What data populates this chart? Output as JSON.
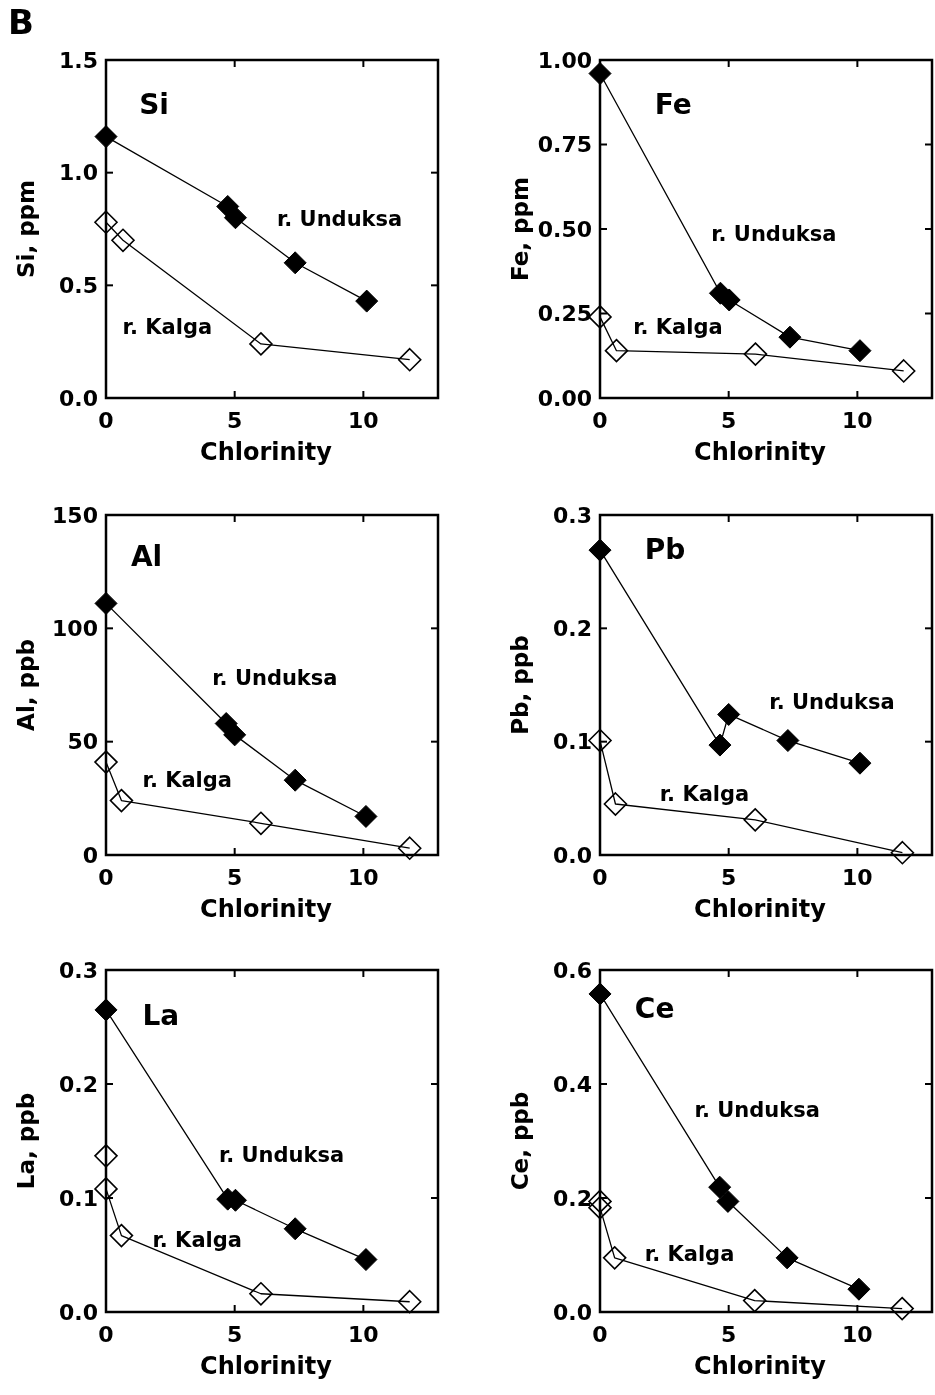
{
  "chart_data": [
    {
      "type": "line",
      "title": "Si",
      "xlabel": "Chlorinity",
      "ylabel": "Si, ppm",
      "annotations": [
        "B"
      ],
      "xlim": [
        0,
        12.9
      ],
      "xticks": [
        0,
        5,
        10
      ],
      "ylim": [
        0,
        1.5
      ],
      "yticks": [
        {
          "value": 0,
          "label": "0.0"
        },
        {
          "value": 0.5,
          "label": "0.5"
        },
        {
          "value": 1,
          "label": "1.0"
        },
        1.5
      ],
      "marker": "diamond",
      "line_style": "solid",
      "series": [
        {
          "name": "r. Unduksa",
          "color": "#000000",
          "x": [
            0,
            4.73,
            5.03,
            7.35,
            10.13
          ],
          "values": [
            1.16,
            0.85,
            0.8,
            0.6,
            0.43
          ]
        },
        {
          "name": "r. Kalga",
          "color": "#000000",
          "x": [
            0,
            0.66,
            6.02,
            11.8
          ],
          "values": [
            0.78,
            0.7,
            0.24,
            0.17
          ]
        }
      ]
    },
    {
      "type": "line",
      "title": "Fe",
      "xlabel": "Chlorinity",
      "ylabel": "Fe, ppm",
      "xlim": [
        0,
        12.9
      ],
      "xticks": [
        0,
        5,
        10
      ],
      "ylim": [
        0,
        1
      ],
      "yticks": [
        {
          "value": 0,
          "label": "0.00"
        },
        0.25,
        {
          "value": 0.5,
          "label": "0.50"
        },
        0.75,
        {
          "value": 1,
          "label": "1.00"
        }
      ],
      "marker": "diamond",
      "line_style": "solid",
      "series": [
        {
          "name": "r. Unduksa",
          "color": "#000000",
          "x": [
            0,
            4.68,
            5.02,
            7.38,
            10.1
          ],
          "values": [
            0.96,
            0.31,
            0.29,
            0.18,
            0.14
          ]
        },
        {
          "name": "r. Kalga",
          "color": "#000000",
          "x": [
            0,
            0.64,
            6.04,
            11.8
          ],
          "values": [
            0.24,
            0.14,
            0.13,
            0.08
          ]
        }
      ]
    },
    {
      "type": "line",
      "title": "Al",
      "xlabel": "Chlorinity",
      "ylabel": "Al, ppb",
      "xlim": [
        0,
        12.9
      ],
      "xticks": [
        0,
        5,
        10
      ],
      "ylim": [
        0,
        150
      ],
      "yticks": [
        0,
        50,
        100,
        150
      ],
      "marker": "diamond",
      "line_style": "solid",
      "series": [
        {
          "name": "r. Unduksa",
          "color": "#000000",
          "x": [
            0,
            4.67,
            5.0,
            7.35,
            10.1
          ],
          "values": [
            111,
            58,
            53,
            33,
            17
          ]
        },
        {
          "name": "r. Kalga",
          "color": "#000000",
          "x": [
            0,
            0.6,
            6.02,
            11.8
          ],
          "values": [
            41,
            24,
            14,
            3
          ]
        }
      ]
    },
    {
      "type": "line",
      "title": "Pb",
      "xlabel": "Chlorinity",
      "ylabel": "Pb, ppb",
      "xlim": [
        0,
        12.9
      ],
      "xticks": [
        0,
        5,
        10
      ],
      "ylim": [
        0,
        0.3
      ],
      "yticks": [
        {
          "value": 0,
          "label": "0.0"
        },
        0.1,
        0.2,
        0.3
      ],
      "marker": "diamond",
      "line_style": "solid",
      "series": [
        {
          "name": "r. Unduksa",
          "color": "#000000",
          "x": [
            0,
            4.66,
            5.0,
            7.3,
            10.1
          ],
          "values": [
            0.269,
            0.097,
            0.124,
            0.101,
            0.081
          ]
        },
        {
          "name": "r. Kalga",
          "color": "#000000",
          "x": [
            0,
            0.6,
            6.03,
            11.75
          ],
          "values": [
            0.101,
            0.045,
            0.031,
            0.002
          ]
        }
      ]
    },
    {
      "type": "line",
      "title": "La",
      "xlabel": "Chlorinity",
      "ylabel": "La, ppb",
      "xlim": [
        0,
        12.9
      ],
      "xticks": [
        0,
        5,
        10
      ],
      "ylim": [
        0,
        0.3
      ],
      "yticks": [
        {
          "value": 0,
          "label": "0.0"
        },
        0.1,
        0.2,
        0.3
      ],
      "marker": "diamond",
      "line_style": "solid",
      "series": [
        {
          "name": "r. Unduksa",
          "color": "#000000",
          "x": [
            0,
            4.73,
            5.03,
            7.35,
            10.1
          ],
          "values": [
            0.265,
            0.099,
            0.098,
            0.073,
            0.046
          ]
        },
        {
          "name": "r. Kalga",
          "color": "#000000",
          "x": [
            0,
            0,
            0.6,
            6.02,
            11.8
          ],
          "values": [
            0.137,
            0.108,
            0.067,
            0.016,
            0.009
          ]
        }
      ]
    },
    {
      "type": "line",
      "title": "Ce",
      "xlabel": "Chlorinity",
      "ylabel": "Ce, ppb",
      "xlim": [
        0,
        12.9
      ],
      "xticks": [
        0,
        5,
        10
      ],
      "ylim": [
        0,
        0.6
      ],
      "yticks": [
        {
          "value": 0,
          "label": "0.0"
        },
        0.2,
        0.4,
        0.6
      ],
      "marker": "diamond",
      "line_style": "solid",
      "series": [
        {
          "name": "r. Unduksa",
          "color": "#000000",
          "x": [
            0,
            4.65,
            4.97,
            7.27,
            10.06
          ],
          "values": [
            0.558,
            0.219,
            0.194,
            0.095,
            0.04
          ]
        },
        {
          "name": "r. Kalga",
          "color": "#000000",
          "x": [
            0,
            0,
            0.57,
            6.01,
            11.74
          ],
          "values": [
            0.194,
            0.183,
            0.095,
            0.02,
            0.006
          ]
        }
      ]
    }
  ]
}
